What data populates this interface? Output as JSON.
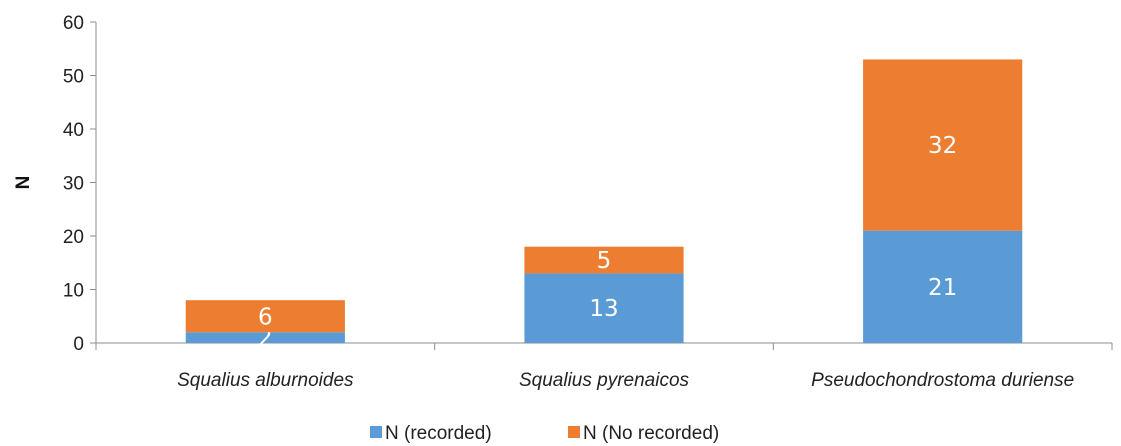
{
  "chart_data": {
    "type": "bar",
    "stacked": true,
    "categories": [
      "Squalius alburnoides",
      "Squalius pyrenaicos",
      "Pseudochondrostoma duriense"
    ],
    "series": [
      {
        "name": "N (recorded)",
        "values": [
          2,
          13,
          21
        ],
        "color": "#5b9bd5"
      },
      {
        "name": "N (No recorded)",
        "values": [
          6,
          5,
          32
        ],
        "color": "#ed7d31"
      }
    ],
    "y_ticks": [
      0,
      10,
      20,
      30,
      40,
      50,
      60
    ],
    "ylim": [
      0,
      60
    ],
    "ylabel": "N",
    "xlabel": "",
    "grid": false,
    "legend_position": "bottom"
  }
}
